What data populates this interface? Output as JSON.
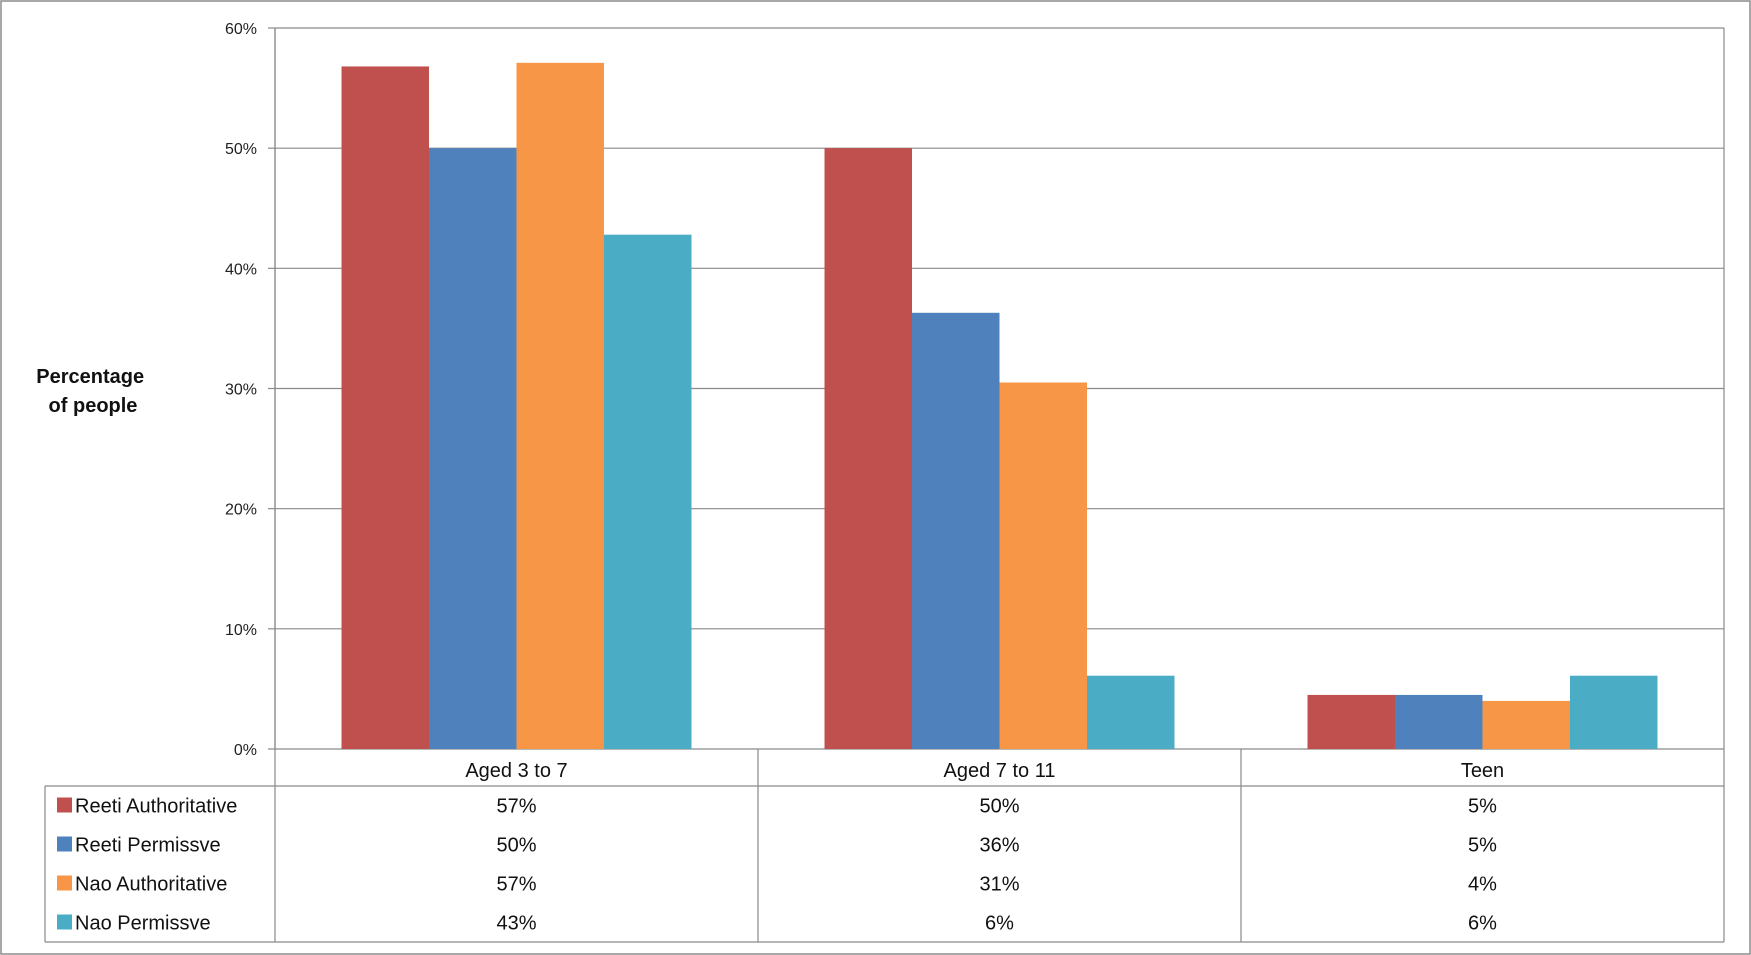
{
  "chart_data": {
    "type": "bar",
    "categories": [
      "Aged 3 to 7",
      "Aged 7 to 11",
      "Teen"
    ],
    "series": [
      {
        "name": "Reeti Authoritative",
        "color": "#C0504D",
        "values": [
          56.8,
          50.0,
          4.5
        ],
        "labels": [
          "57%",
          "50%",
          "5%"
        ]
      },
      {
        "name": "Reeti Permissve",
        "color": "#4F81BD",
        "values": [
          50.0,
          36.3,
          4.5
        ],
        "labels": [
          "50%",
          "36%",
          "5%"
        ]
      },
      {
        "name": "Nao Authoritative",
        "color": "#F79646",
        "values": [
          57.1,
          30.5,
          4.0
        ],
        "labels": [
          "57%",
          "31%",
          "4%"
        ]
      },
      {
        "name": "Nao Permissve",
        "color": "#4BACC6",
        "values": [
          42.8,
          6.1,
          6.1
        ],
        "labels": [
          "43%",
          "6%",
          "6%"
        ]
      }
    ],
    "ylabel_lines": [
      "Percentage",
      "of people"
    ],
    "yticks": [
      "0%",
      "10%",
      "20%",
      "30%",
      "40%",
      "50%",
      "60%"
    ],
    "ylim": [
      0,
      60
    ],
    "grid": true,
    "legend": "data-table-left"
  }
}
